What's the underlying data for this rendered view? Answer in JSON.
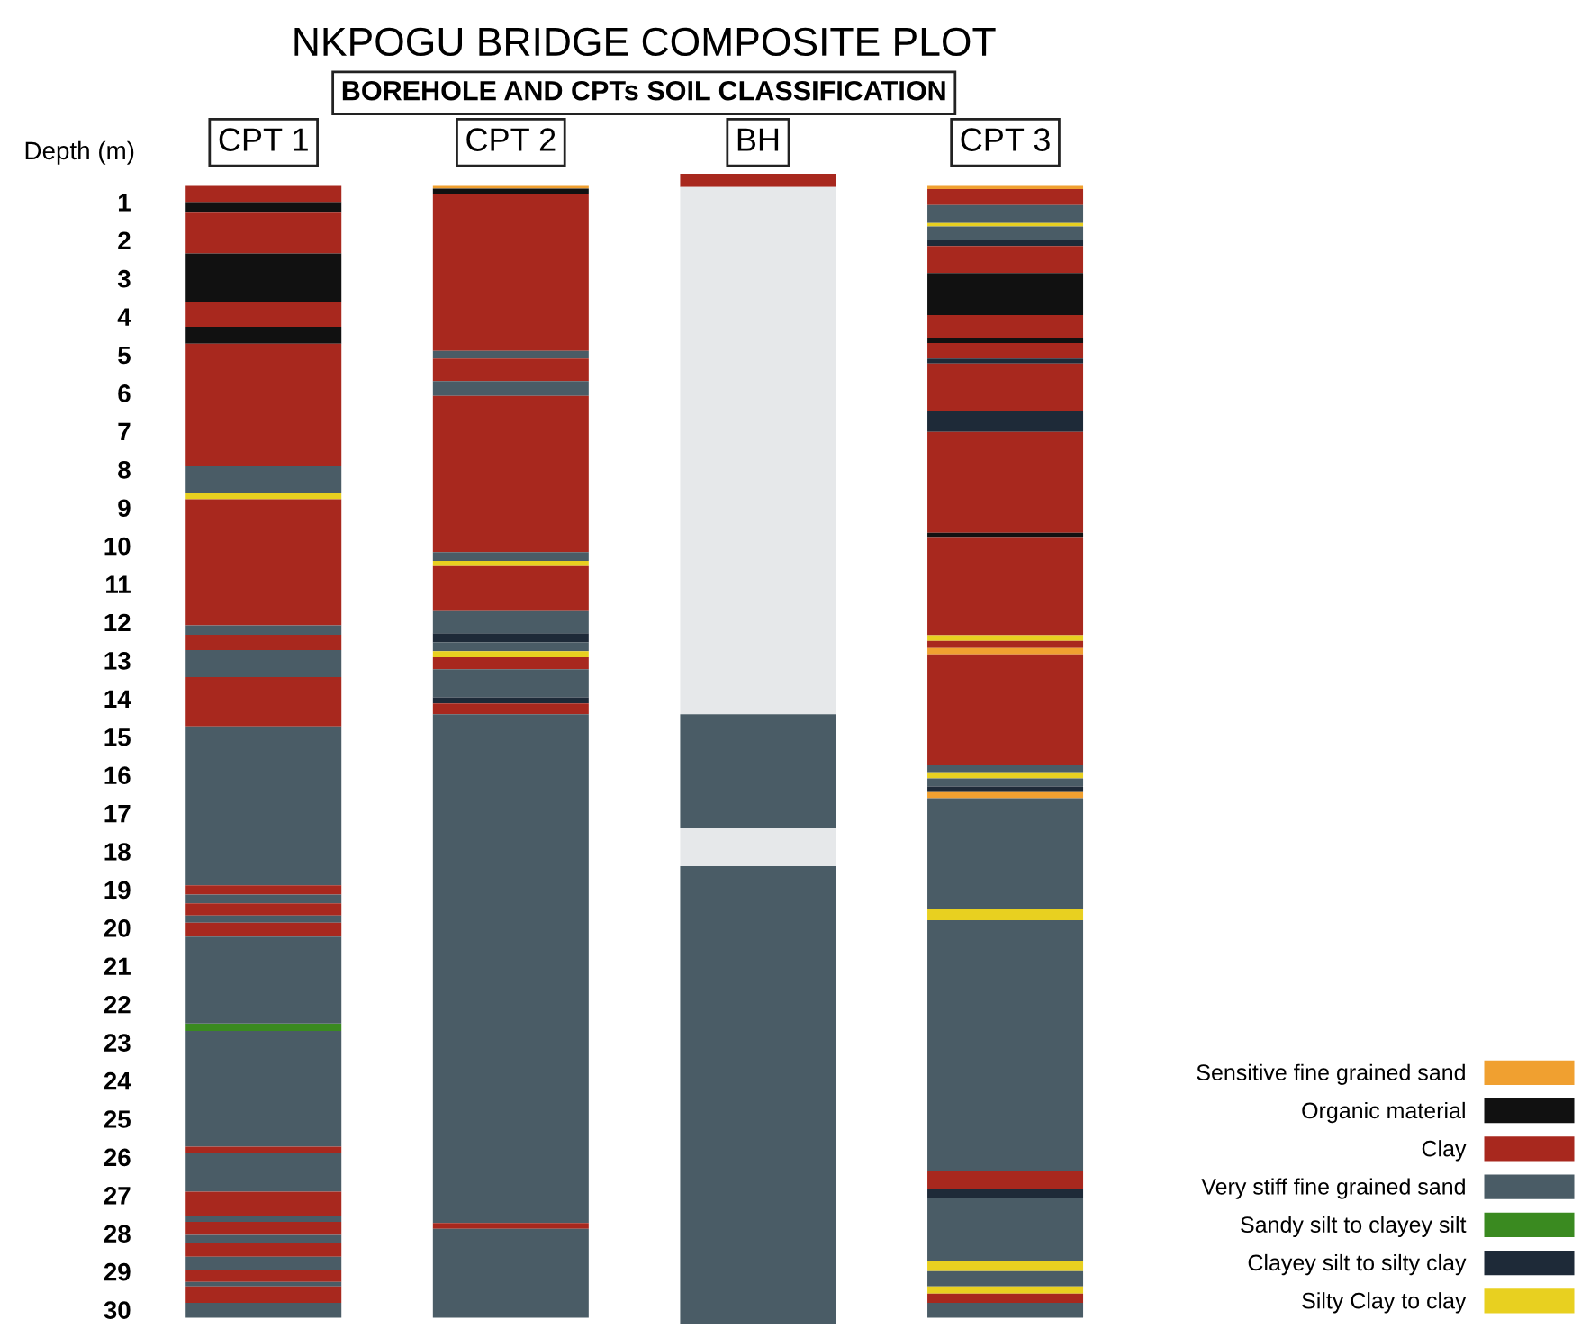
{
  "chart_data": {
    "type": "bar",
    "title": "NKPOGU BRIDGE COMPOSITE PLOT",
    "subtitle": "BOREHOLE AND CPTs SOIL CLASSIFICATION",
    "ylabel": "Depth (m)",
    "categories": [
      "CPT 1",
      "CPT 2",
      "BH",
      "CPT 3"
    ],
    "ylim": [
      30.4,
      0.2
    ],
    "yticks": [
      1,
      2,
      3,
      4,
      5,
      6,
      7,
      8,
      9,
      10,
      11,
      12,
      13,
      14,
      15,
      16,
      17,
      18,
      19,
      20,
      21,
      22,
      23,
      24,
      25,
      26,
      27,
      28,
      29,
      30
    ],
    "grid": false,
    "legend": "bottom right",
    "series": [
      {
        "name": "Sensitive fine grained sand",
        "color": "#f0a030",
        "base": [
          null,
          0.58,
          null,
          null
        ],
        "values": [
          null,
          0.07,
          null,
          null
        ]
      },
      {
        "name": "Organic material",
        "color": "#111111",
        "base": [
          1.0,
          null,
          null,
          null
        ],
        "values": [
          0.28,
          null,
          null,
          null
        ]
      },
      {
        "name": "Clay",
        "color": "#a8281e",
        "base": [
          0.58,
          null,
          null,
          null
        ],
        "values": [
          0.42,
          null,
          null,
          null
        ]
      },
      {
        "name": "Very stiff fine grained sand",
        "color": "#4a5c66",
        "base": [
          7.92,
          null,
          null,
          null
        ],
        "values": [
          0.69,
          null,
          null,
          null
        ]
      },
      {
        "name": "Sandy silt to clayey silt",
        "color": "#3a8a20",
        "base": [
          22.51,
          null,
          null,
          null
        ],
        "values": [
          0.19,
          null,
          null,
          null
        ]
      },
      {
        "name": "Clayey silt to silty clay",
        "color": "#1e2a38",
        "base": [
          null,
          12.29,
          null,
          null
        ],
        "values": [
          null,
          0.24,
          null,
          null
        ]
      },
      {
        "name": "Silty Clay to clay",
        "color": "#e8d020",
        "base": [
          8.61,
          null,
          null,
          null
        ],
        "values": [
          0.17,
          null,
          null,
          null
        ]
      },
      {
        "color": "#a8281e",
        "base": [
          1.28,
          null,
          null,
          null
        ],
        "values": [
          1.07,
          null,
          null,
          null
        ]
      },
      {
        "color": "#111111",
        "base": [
          2.35,
          null,
          null,
          null
        ],
        "values": [
          1.26,
          null,
          null,
          null
        ]
      },
      {
        "color": "#a8281e",
        "base": [
          3.61,
          null,
          null,
          null
        ],
        "values": [
          0.66,
          null,
          null,
          null
        ]
      },
      {
        "color": "#111111",
        "base": [
          4.27,
          null,
          null,
          null
        ],
        "values": [
          0.44,
          null,
          null,
          null
        ]
      },
      {
        "color": "#a8281e",
        "base": [
          4.71,
          null,
          null,
          null
        ],
        "values": [
          3.21,
          null,
          null,
          null
        ]
      },
      {
        "color": "#a8281e",
        "base": [
          8.78,
          null,
          null,
          null
        ],
        "values": [
          3.3,
          null,
          null,
          null
        ]
      },
      {
        "color": "#4a5c66",
        "base": [
          12.08,
          null,
          null,
          null
        ],
        "values": [
          0.25,
          null,
          null,
          null
        ]
      },
      {
        "color": "#a8281e",
        "base": [
          12.33,
          null,
          null,
          null
        ],
        "values": [
          0.4,
          null,
          null,
          null
        ]
      },
      {
        "color": "#4a5c66",
        "base": [
          12.73,
          null,
          null,
          null
        ],
        "values": [
          0.71,
          null,
          null,
          null
        ]
      },
      {
        "color": "#a8281e",
        "base": [
          13.44,
          null,
          null,
          null
        ],
        "values": [
          1.29,
          null,
          null,
          null
        ]
      },
      {
        "color": "#4a5c66",
        "base": [
          14.73,
          null,
          null,
          null
        ],
        "values": [
          4.16,
          null,
          null,
          null
        ]
      },
      {
        "color": "#a8281e",
        "base": [
          18.89,
          null,
          null,
          null
        ],
        "values": [
          0.24,
          null,
          null,
          null
        ]
      },
      {
        "color": "#4a5c66",
        "base": [
          19.13,
          null,
          null,
          null
        ],
        "values": [
          0.23,
          null,
          null,
          null
        ]
      },
      {
        "color": "#a8281e",
        "base": [
          19.36,
          null,
          null,
          null
        ],
        "values": [
          0.32,
          null,
          null,
          null
        ]
      },
      {
        "color": "#4a5c66",
        "base": [
          19.68,
          null,
          null,
          null
        ],
        "values": [
          0.19,
          null,
          null,
          null
        ]
      },
      {
        "color": "#a8281e",
        "base": [
          19.87,
          null,
          null,
          null
        ],
        "values": [
          0.36,
          null,
          null,
          null
        ]
      },
      {
        "color": "#4a5c66",
        "base": [
          20.23,
          null,
          null,
          null
        ],
        "values": [
          2.28,
          null,
          null,
          null
        ]
      },
      {
        "color": "#4a5c66",
        "base": [
          22.7,
          null,
          null,
          null
        ],
        "values": [
          3.03,
          null,
          null,
          null
        ]
      },
      {
        "color": "#a8281e",
        "base": [
          25.73,
          null,
          null,
          null
        ],
        "values": [
          0.16,
          null,
          null,
          null
        ]
      },
      {
        "color": "#4a5c66",
        "base": [
          25.89,
          null,
          null,
          null
        ],
        "values": [
          1.02,
          null,
          null,
          null
        ]
      },
      {
        "color": "#a8281e",
        "base": [
          26.91,
          null,
          null,
          null
        ],
        "values": [
          0.63,
          null,
          null,
          null
        ]
      },
      {
        "color": "#4a5c66",
        "base": [
          27.54,
          null,
          null,
          null
        ],
        "values": [
          0.16,
          null,
          null,
          null
        ]
      },
      {
        "color": "#a8281e",
        "base": [
          27.7,
          null,
          null,
          null
        ],
        "values": [
          0.34,
          null,
          null,
          null
        ]
      },
      {
        "color": "#4a5c66",
        "base": [
          28.04,
          null,
          null,
          null
        ],
        "values": [
          0.21,
          null,
          null,
          null
        ]
      },
      {
        "color": "#a8281e",
        "base": [
          28.25,
          null,
          null,
          null
        ],
        "values": [
          0.36,
          null,
          null,
          null
        ]
      },
      {
        "color": "#4a5c66",
        "base": [
          28.61,
          null,
          null,
          null
        ],
        "values": [
          0.34,
          null,
          null,
          null
        ]
      },
      {
        "color": "#a8281e",
        "base": [
          28.95,
          null,
          null,
          null
        ],
        "values": [
          0.32,
          null,
          null,
          null
        ]
      },
      {
        "color": "#4a5c66",
        "base": [
          29.27,
          null,
          null,
          null
        ],
        "values": [
          0.12,
          null,
          null,
          null
        ]
      },
      {
        "color": "#a8281e",
        "base": [
          29.39,
          null,
          null,
          null
        ],
        "values": [
          0.43,
          null,
          null,
          null
        ]
      },
      {
        "color": "#4a5c66",
        "base": [
          29.82,
          null,
          null,
          null
        ],
        "values": [
          0.39,
          null,
          null,
          null
        ]
      },
      {
        "color": "#111111",
        "base": [
          null,
          0.65,
          null,
          null
        ],
        "values": [
          null,
          0.13,
          null,
          null
        ]
      },
      {
        "color": "#a8281e",
        "base": [
          null,
          0.78,
          null,
          null
        ],
        "values": [
          null,
          4.12,
          null,
          null
        ]
      },
      {
        "color": "#4a5c66",
        "base": [
          null,
          4.9,
          null,
          null
        ],
        "values": [
          null,
          0.2,
          null,
          null
        ]
      },
      {
        "color": "#a8281e",
        "base": [
          null,
          5.1,
          null,
          null
        ],
        "values": [
          null,
          0.59,
          null,
          null
        ]
      },
      {
        "color": "#4a5c66",
        "base": [
          null,
          5.69,
          null,
          null
        ],
        "values": [
          null,
          0.39,
          null,
          null
        ]
      },
      {
        "color": "#a8281e",
        "base": [
          null,
          6.08,
          null,
          null
        ],
        "values": [
          null,
          4.09,
          null,
          null
        ]
      },
      {
        "color": "#4a5c66",
        "base": [
          null,
          10.17,
          null,
          null
        ],
        "values": [
          null,
          0.23,
          null,
          null
        ]
      },
      {
        "color": "#e8d020",
        "base": [
          null,
          10.4,
          null,
          null
        ],
        "values": [
          null,
          0.13,
          null,
          null
        ]
      },
      {
        "color": "#a8281e",
        "base": [
          null,
          10.53,
          null,
          null
        ],
        "values": [
          null,
          1.18,
          null,
          null
        ]
      },
      {
        "color": "#4a5c66",
        "base": [
          null,
          11.71,
          null,
          null
        ],
        "values": [
          null,
          0.58,
          null,
          null
        ]
      },
      {
        "color": "#4a5c66",
        "base": [
          null,
          12.53,
          null,
          null
        ],
        "values": [
          null,
          0.23,
          null,
          null
        ]
      },
      {
        "color": "#e8d020",
        "base": [
          null,
          12.76,
          null,
          null
        ],
        "values": [
          null,
          0.16,
          null,
          null
        ]
      },
      {
        "color": "#a8281e",
        "base": [
          null,
          12.92,
          null,
          null
        ],
        "values": [
          null,
          0.31,
          null,
          null
        ]
      },
      {
        "color": "#4a5c66",
        "base": [
          null,
          13.23,
          null,
          null
        ],
        "values": [
          null,
          0.74,
          null,
          null
        ]
      },
      {
        "color": "#1e2a38",
        "base": [
          null,
          13.97,
          null,
          null
        ],
        "values": [
          null,
          0.16,
          null,
          null
        ]
      },
      {
        "color": "#a8281e",
        "base": [
          null,
          14.13,
          null,
          null
        ],
        "values": [
          null,
          0.28,
          null,
          null
        ]
      },
      {
        "color": "#4a5c66",
        "base": [
          null,
          14.41,
          null,
          null
        ],
        "values": [
          null,
          13.32,
          null,
          null
        ]
      },
      {
        "color": "#a8281e",
        "base": [
          null,
          27.73,
          null,
          null
        ],
        "values": [
          null,
          0.15,
          null,
          null
        ]
      },
      {
        "color": "#4a5c66",
        "base": [
          null,
          27.88,
          null,
          null
        ],
        "values": [
          null,
          2.33,
          null,
          null
        ]
      },
      {
        "color": "#a8281e",
        "base": [
          null,
          null,
          0.26,
          null
        ],
        "values": [
          null,
          null,
          0.35,
          null
        ]
      },
      {
        "color": "#e6e8ea",
        "base": [
          null,
          null,
          0.61,
          null
        ],
        "values": [
          null,
          null,
          13.8,
          null
        ]
      },
      {
        "color": "#4a5c66",
        "base": [
          null,
          null,
          14.41,
          null
        ],
        "values": [
          null,
          null,
          2.99,
          null
        ]
      },
      {
        "color": "#e6e8ea",
        "base": [
          null,
          null,
          17.4,
          null
        ],
        "values": [
          null,
          null,
          0.99,
          null
        ]
      },
      {
        "color": "#4a5c66",
        "base": [
          null,
          null,
          18.39,
          null
        ],
        "values": [
          null,
          null,
          11.98,
          null
        ]
      },
      {
        "color": "#f0a030",
        "base": [
          null,
          null,
          null,
          0.58
        ],
        "values": [
          null,
          null,
          null,
          0.08
        ]
      },
      {
        "color": "#a8281e",
        "base": [
          null,
          null,
          null,
          0.66
        ],
        "values": [
          null,
          null,
          null,
          0.42
        ]
      },
      {
        "color": "#4a5c66",
        "base": [
          null,
          null,
          null,
          1.08
        ],
        "values": [
          null,
          null,
          null,
          0.47
        ]
      },
      {
        "color": "#e8d020",
        "base": [
          null,
          null,
          null,
          1.55
        ],
        "values": [
          null,
          null,
          null,
          0.09
        ]
      },
      {
        "color": "#4a5c66",
        "base": [
          null,
          null,
          null,
          1.64
        ],
        "values": [
          null,
          null,
          null,
          0.35
        ]
      },
      {
        "color": "#1e2a38",
        "base": [
          null,
          null,
          null,
          1.99
        ],
        "values": [
          null,
          null,
          null,
          0.16
        ]
      },
      {
        "color": "#a8281e",
        "base": [
          null,
          null,
          null,
          2.15
        ],
        "values": [
          null,
          null,
          null,
          0.71
        ]
      },
      {
        "color": "#111111",
        "base": [
          null,
          null,
          null,
          2.86
        ],
        "values": [
          null,
          null,
          null,
          1.1
        ]
      },
      {
        "color": "#a8281e",
        "base": [
          null,
          null,
          null,
          3.96
        ],
        "values": [
          null,
          null,
          null,
          0.59
        ]
      },
      {
        "color": "#111111",
        "base": [
          null,
          null,
          null,
          4.55
        ],
        "values": [
          null,
          null,
          null,
          0.14
        ]
      },
      {
        "color": "#a8281e",
        "base": [
          null,
          null,
          null,
          4.69
        ],
        "values": [
          null,
          null,
          null,
          0.41
        ]
      },
      {
        "color": "#1e2a38",
        "base": [
          null,
          null,
          null,
          5.1
        ],
        "values": [
          null,
          null,
          null,
          0.13
        ]
      },
      {
        "color": "#a8281e",
        "base": [
          null,
          null,
          null,
          5.23
        ],
        "values": [
          null,
          null,
          null,
          1.24
        ]
      },
      {
        "color": "#1e2a38",
        "base": [
          null,
          null,
          null,
          6.47
        ],
        "values": [
          null,
          null,
          null,
          0.55
        ]
      },
      {
        "color": "#a8281e",
        "base": [
          null,
          null,
          null,
          7.02
        ],
        "values": [
          null,
          null,
          null,
          2.64
        ]
      },
      {
        "color": "#111111",
        "base": [
          null,
          null,
          null,
          9.66
        ],
        "values": [
          null,
          null,
          null,
          0.11
        ]
      },
      {
        "color": "#a8281e",
        "base": [
          null,
          null,
          null,
          9.77
        ],
        "values": [
          null,
          null,
          null,
          2.57
        ]
      },
      {
        "color": "#e8d020",
        "base": [
          null,
          null,
          null,
          12.34
        ],
        "values": [
          null,
          null,
          null,
          0.15
        ]
      },
      {
        "color": "#a8281e",
        "base": [
          null,
          null,
          null,
          12.49
        ],
        "values": [
          null,
          null,
          null,
          0.19
        ]
      },
      {
        "color": "#f0a030",
        "base": [
          null,
          null,
          null,
          12.68
        ],
        "values": [
          null,
          null,
          null,
          0.16
        ]
      },
      {
        "color": "#a8281e",
        "base": [
          null,
          null,
          null,
          12.84
        ],
        "values": [
          null,
          null,
          null,
          2.91
        ]
      },
      {
        "color": "#4a5c66",
        "base": [
          null,
          null,
          null,
          15.75
        ],
        "values": [
          null,
          null,
          null,
          0.18
        ]
      },
      {
        "color": "#e8d020",
        "base": [
          null,
          null,
          null,
          15.93
        ],
        "values": [
          null,
          null,
          null,
          0.16
        ]
      },
      {
        "color": "#4a5c66",
        "base": [
          null,
          null,
          null,
          16.09
        ],
        "values": [
          null,
          null,
          null,
          0.21
        ]
      },
      {
        "color": "#1e2a38",
        "base": [
          null,
          null,
          null,
          16.3
        ],
        "values": [
          null,
          null,
          null,
          0.15
        ]
      },
      {
        "color": "#f0a030",
        "base": [
          null,
          null,
          null,
          16.45
        ],
        "values": [
          null,
          null,
          null,
          0.16
        ]
      },
      {
        "color": "#4a5c66",
        "base": [
          null,
          null,
          null,
          16.61
        ],
        "values": [
          null,
          null,
          null,
          2.91
        ]
      },
      {
        "color": "#e8d020",
        "base": [
          null,
          null,
          null,
          19.52
        ],
        "values": [
          null,
          null,
          null,
          0.28
        ]
      },
      {
        "color": "#4a5c66",
        "base": [
          null,
          null,
          null,
          19.8
        ],
        "values": [
          null,
          null,
          null,
          6.56
        ]
      },
      {
        "color": "#a8281e",
        "base": [
          null,
          null,
          null,
          26.36
        ],
        "values": [
          null,
          null,
          null,
          0.47
        ]
      },
      {
        "color": "#1e2a38",
        "base": [
          null,
          null,
          null,
          26.83
        ],
        "values": [
          null,
          null,
          null,
          0.24
        ]
      },
      {
        "color": "#4a5c66",
        "base": [
          null,
          null,
          null,
          27.07
        ],
        "values": [
          null,
          null,
          null,
          1.65
        ]
      },
      {
        "color": "#e8d020",
        "base": [
          null,
          null,
          null,
          28.72
        ],
        "values": [
          null,
          null,
          null,
          0.27
        ]
      },
      {
        "color": "#4a5c66",
        "base": [
          null,
          null,
          null,
          28.99
        ],
        "values": [
          null,
          null,
          null,
          0.4
        ]
      },
      {
        "color": "#e8d020",
        "base": [
          null,
          null,
          null,
          29.39
        ],
        "values": [
          null,
          null,
          null,
          0.19
        ]
      },
      {
        "color": "#a8281e",
        "base": [
          null,
          null,
          null,
          29.58
        ],
        "values": [
          null,
          null,
          null,
          0.24
        ]
      },
      {
        "color": "#4a5c66",
        "base": [
          null,
          null,
          null,
          29.82
        ],
        "values": [
          null,
          null,
          null,
          0.39
        ]
      }
    ]
  }
}
